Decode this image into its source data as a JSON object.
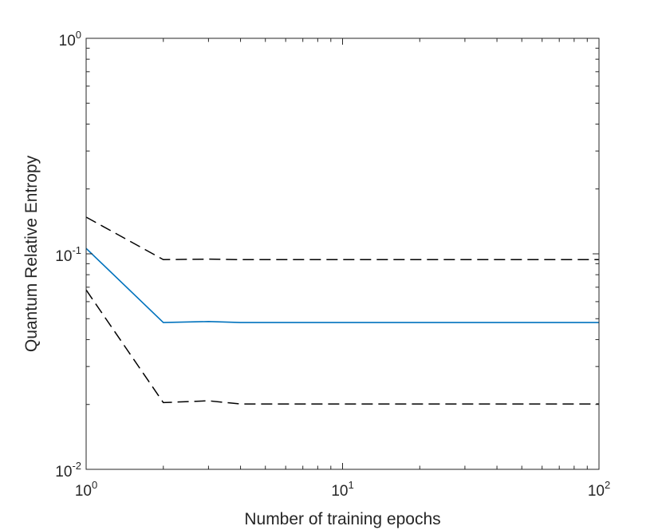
{
  "chart_data": {
    "type": "line",
    "title": "",
    "xlabel": "Number of training epochs",
    "ylabel": "Quantum Relative Entropy",
    "xscale": "log",
    "yscale": "log",
    "xlim": [
      1,
      100
    ],
    "ylim": [
      0.01,
      1
    ],
    "grid": false,
    "legend": "none",
    "x_ticks": [
      {
        "base": "10",
        "exp": "0",
        "value": 1
      },
      {
        "base": "10",
        "exp": "1",
        "value": 10
      },
      {
        "base": "10",
        "exp": "2",
        "value": 100
      }
    ],
    "y_ticks": [
      {
        "base": "10",
        "exp": "-2",
        "value": 0.01
      },
      {
        "base": "10",
        "exp": "-1",
        "value": 0.1
      },
      {
        "base": "10",
        "exp": "0",
        "value": 1
      }
    ],
    "series": [
      {
        "style": "dashed",
        "color": "#000000",
        "x": [
          1,
          2,
          3,
          4,
          5,
          100
        ],
        "y": [
          0.148,
          0.094,
          0.0945,
          0.094,
          0.094,
          0.094
        ]
      },
      {
        "style": "solid",
        "color": "#0072BD",
        "x": [
          1,
          2,
          3,
          4,
          5,
          100
        ],
        "y": [
          0.106,
          0.048,
          0.0485,
          0.048,
          0.048,
          0.048
        ]
      },
      {
        "style": "dashed",
        "color": "#000000",
        "x": [
          1,
          2,
          3,
          4,
          5,
          100
        ],
        "y": [
          0.068,
          0.0204,
          0.0208,
          0.0201,
          0.0201,
          0.0201
        ]
      }
    ]
  }
}
